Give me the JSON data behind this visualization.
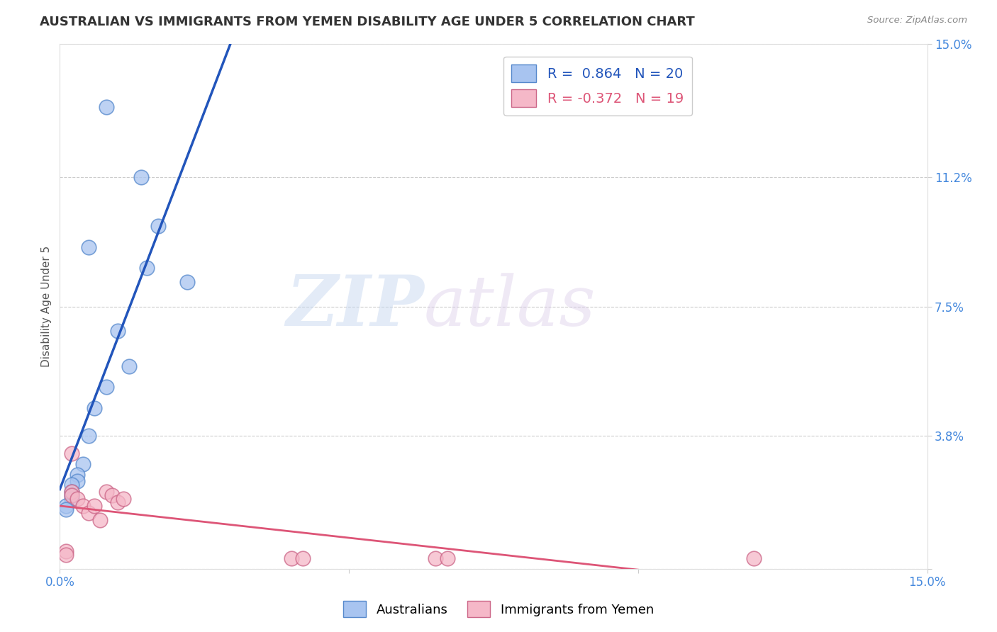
{
  "title": "AUSTRALIAN VS IMMIGRANTS FROM YEMEN DISABILITY AGE UNDER 5 CORRELATION CHART",
  "source": "Source: ZipAtlas.com",
  "ylabel": "Disability Age Under 5",
  "watermark_zip": "ZIP",
  "watermark_atlas": "atlas",
  "xmin": 0.0,
  "xmax": 0.15,
  "ymin": 0.0,
  "ymax": 0.15,
  "blue_R": 0.864,
  "blue_N": 20,
  "pink_R": -0.372,
  "pink_N": 19,
  "blue_color": "#a8c4f0",
  "pink_color": "#f5b8c8",
  "blue_edge_color": "#5588cc",
  "pink_edge_color": "#cc6688",
  "blue_line_color": "#2255bb",
  "pink_line_color": "#dd5577",
  "blue_points_x": [
    0.008,
    0.014,
    0.017,
    0.005,
    0.015,
    0.022,
    0.01,
    0.012,
    0.008,
    0.006,
    0.005,
    0.004,
    0.003,
    0.003,
    0.002,
    0.002,
    0.002,
    0.002,
    0.001,
    0.001
  ],
  "blue_points_y": [
    0.132,
    0.112,
    0.098,
    0.092,
    0.086,
    0.082,
    0.068,
    0.058,
    0.052,
    0.046,
    0.038,
    0.03,
    0.027,
    0.025,
    0.024,
    0.022,
    0.021,
    0.02,
    0.018,
    0.017
  ],
  "pink_points_x": [
    0.001,
    0.001,
    0.002,
    0.002,
    0.003,
    0.004,
    0.005,
    0.006,
    0.007,
    0.008,
    0.009,
    0.01,
    0.011,
    0.04,
    0.042,
    0.065,
    0.067,
    0.12,
    0.002
  ],
  "pink_points_y": [
    0.005,
    0.004,
    0.022,
    0.021,
    0.02,
    0.018,
    0.016,
    0.018,
    0.014,
    0.022,
    0.021,
    0.019,
    0.02,
    0.003,
    0.003,
    0.003,
    0.003,
    0.003,
    0.033
  ],
  "grid_color": "#cccccc",
  "bg_color": "#ffffff",
  "title_color": "#333333",
  "source_color": "#888888",
  "tick_color": "#4488dd",
  "label_color": "#555555",
  "title_fontsize": 13,
  "label_fontsize": 11,
  "tick_fontsize": 12,
  "legend_fontsize": 14
}
